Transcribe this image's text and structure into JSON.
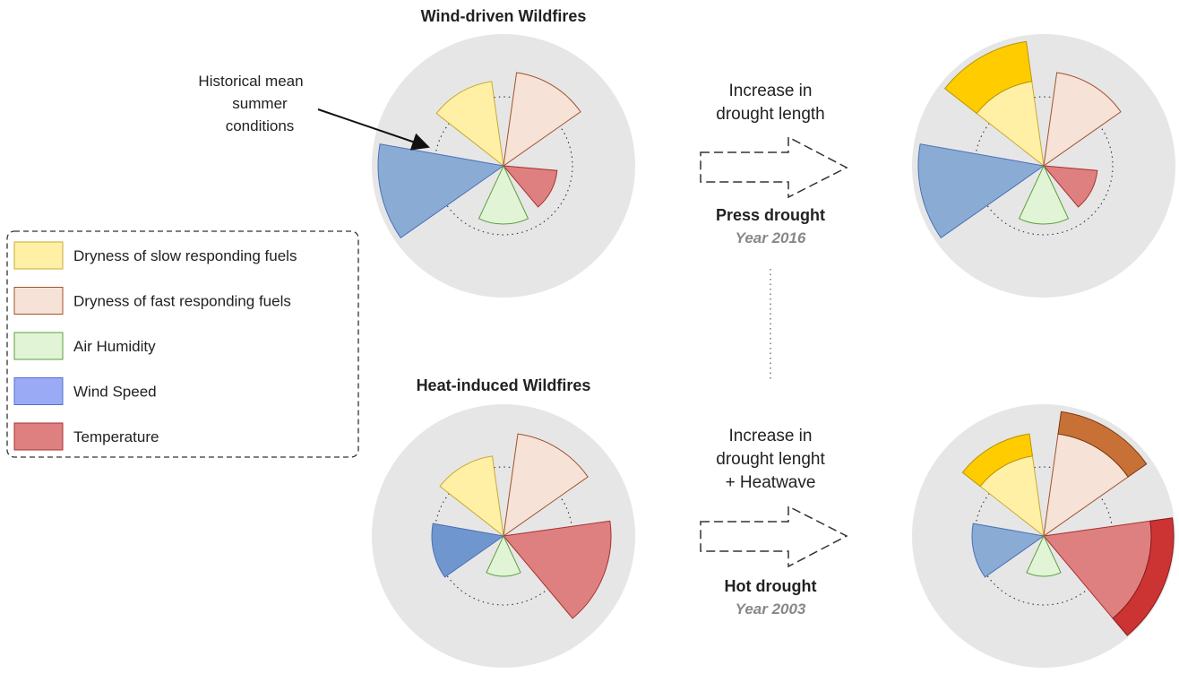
{
  "panels": [
    {
      "title": "Wind-driven Wildfires"
    },
    {
      "title": "Heat-induced Wildfires"
    }
  ],
  "annotation": {
    "lines": [
      "Historical mean",
      "summer",
      "conditions"
    ]
  },
  "legend": {
    "items": [
      "Dryness of slow responding fuels",
      "Dryness of fast responding fuels",
      "Air Humidity",
      "Wind Speed",
      "Temperature"
    ]
  },
  "transitions": [
    {
      "lines": [
        "Increase in",
        "drought length"
      ],
      "name": "Press drought",
      "year": "Year 2016"
    },
    {
      "lines": [
        "Increase in",
        "drought lenght",
        "+ Heatwave"
      ],
      "name": "Hot drought",
      "year": "Year 2003"
    }
  ]
}
